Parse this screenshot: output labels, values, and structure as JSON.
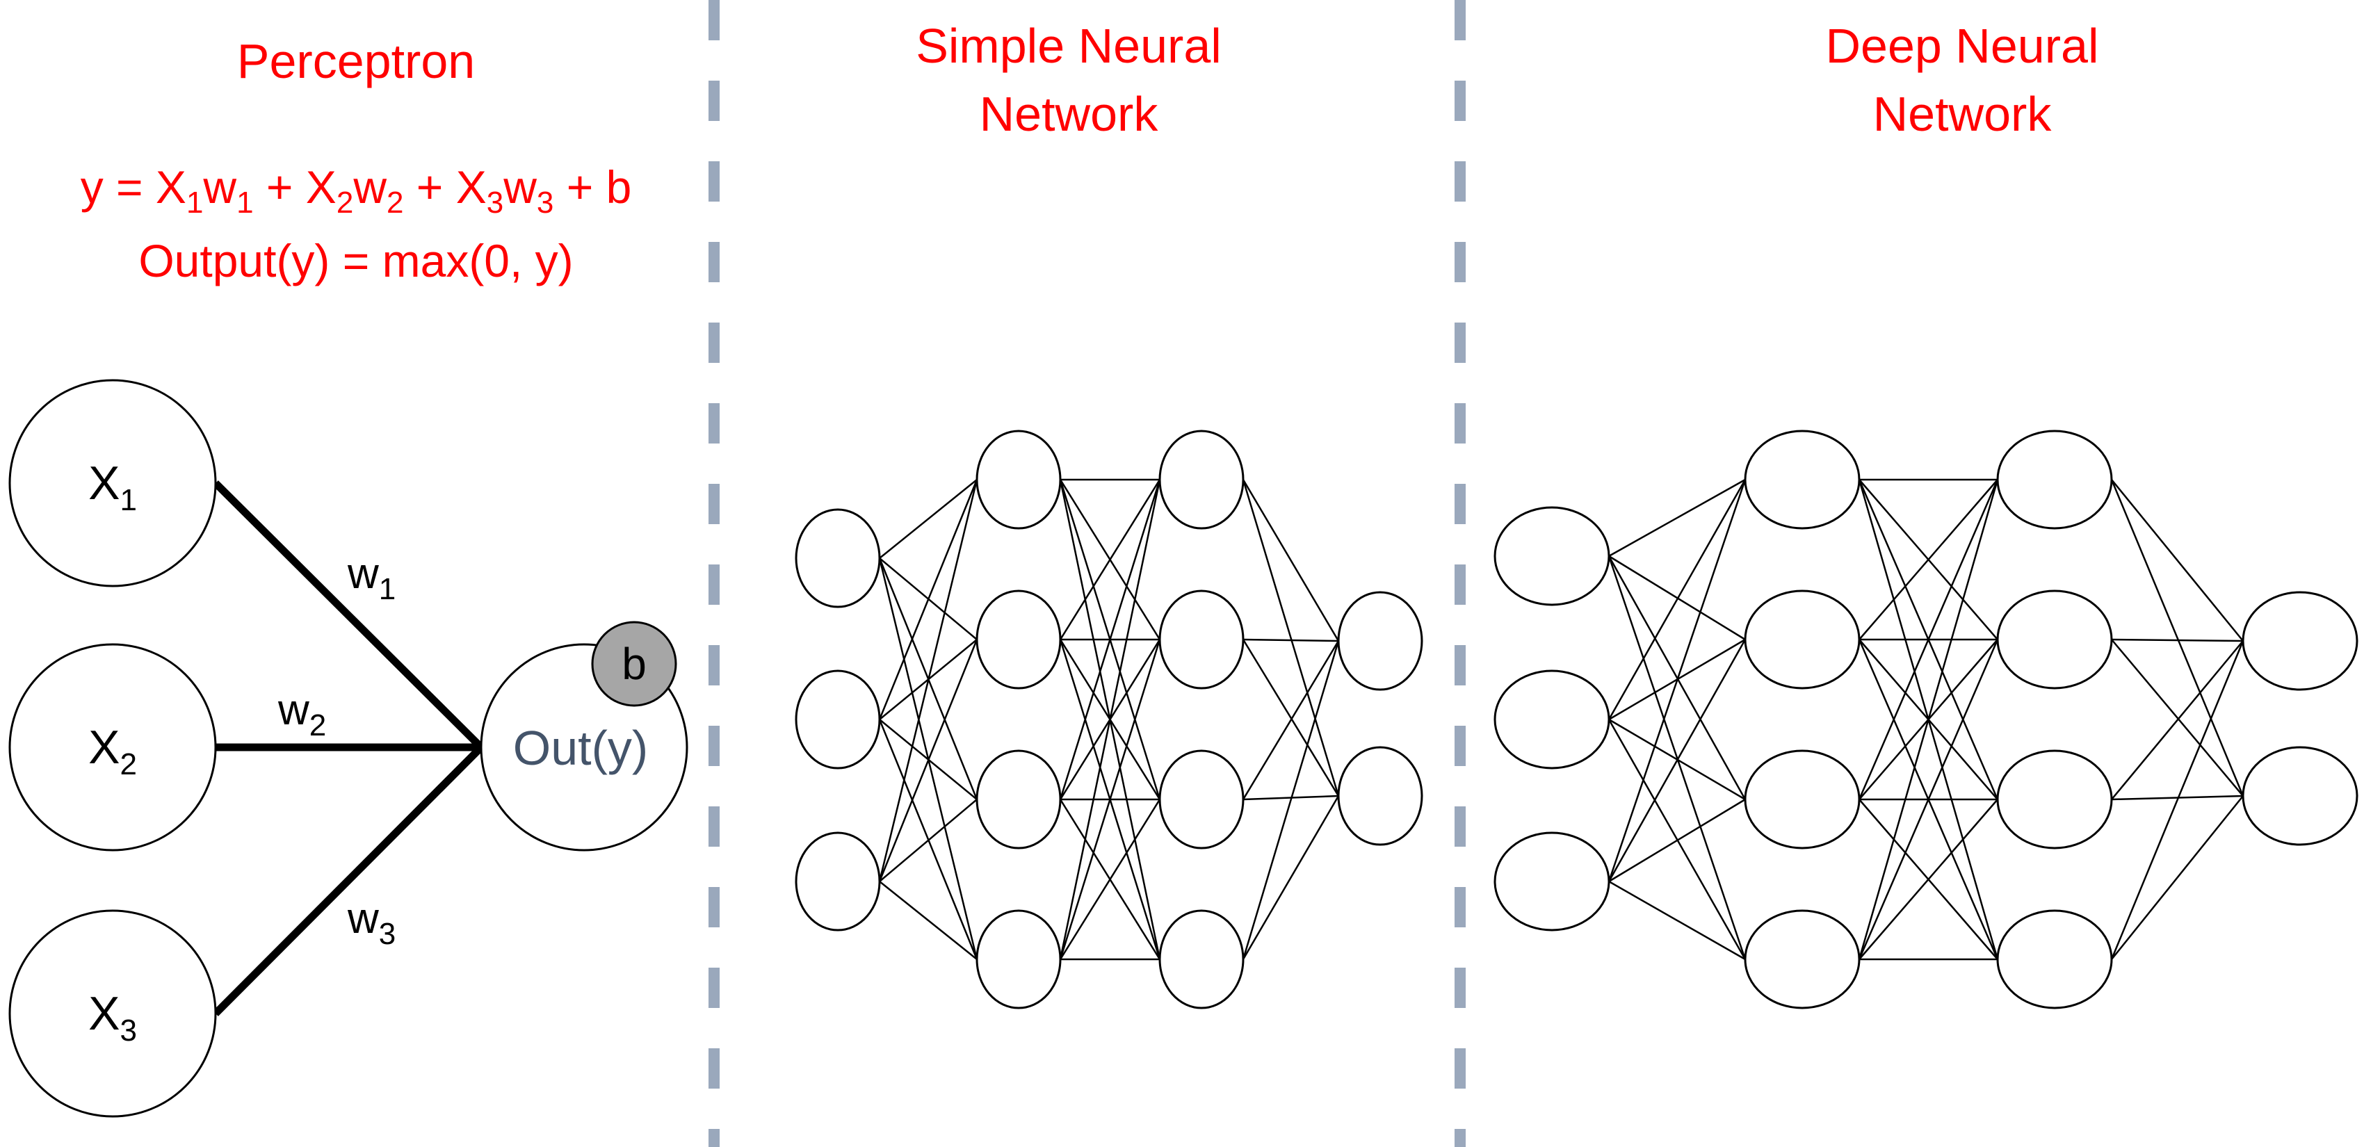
{
  "colors": {
    "title": "#ff0000",
    "divider": "#9aa8bc",
    "node_stroke": "#000000",
    "bias_fill": "#a6a6a6",
    "out_text": "#44546a"
  },
  "perceptron": {
    "title": "Perceptron",
    "formula": {
      "prefix": "y = ",
      "terms": [
        {
          "var": "X",
          "idx": "1",
          "w": "w",
          "widx": "1"
        },
        {
          "var": "X",
          "idx": "2",
          "w": "w",
          "widx": "2"
        },
        {
          "var": "X",
          "idx": "3",
          "w": "w",
          "widx": "3"
        }
      ],
      "plus": " + ",
      "suffix": " + b"
    },
    "activation": "Output(y) = max(0, y)",
    "inputs": [
      {
        "var": "X",
        "idx": "1"
      },
      {
        "var": "X",
        "idx": "2"
      },
      {
        "var": "X",
        "idx": "3"
      }
    ],
    "weights": [
      {
        "w": "w",
        "idx": "1"
      },
      {
        "w": "w",
        "idx": "2"
      },
      {
        "w": "w",
        "idx": "3"
      }
    ],
    "output_label": "Out(y)",
    "bias_label": "b"
  },
  "simple_nn": {
    "title_line1": "Simple Neural",
    "title_line2": "Network",
    "layers": [
      3,
      4,
      4,
      2
    ]
  },
  "deep_nn": {
    "title_line1": "Deep Neural",
    "title_line2": "Network",
    "layers": [
      3,
      4,
      4,
      2
    ]
  }
}
